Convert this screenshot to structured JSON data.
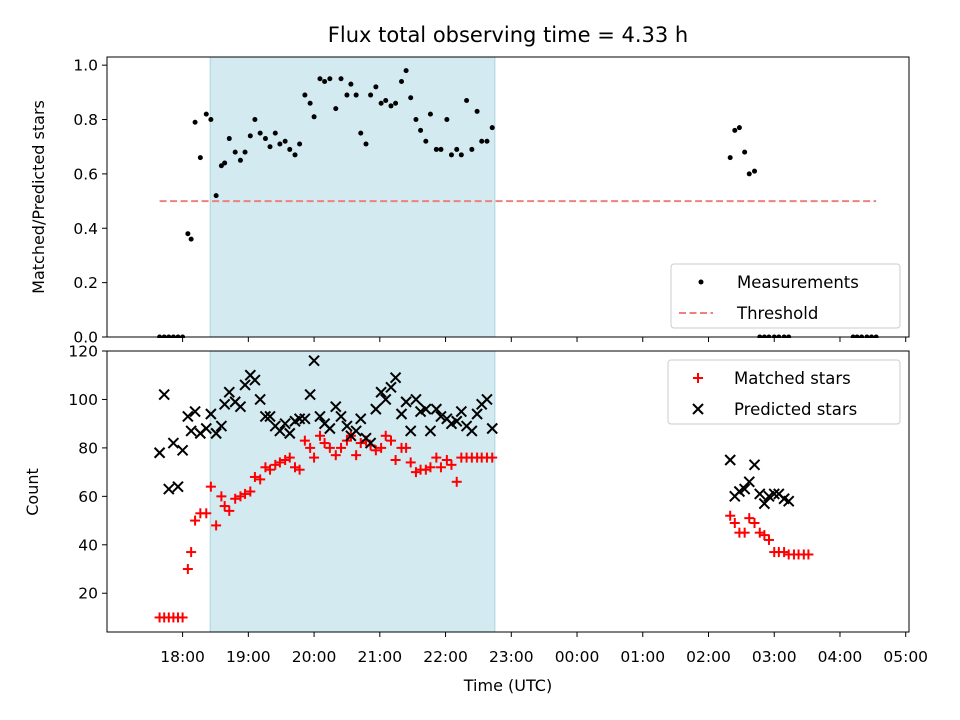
{
  "chart_data": [
    {
      "type": "scatter",
      "title": "Flux total observing time = 4.33 h",
      "ylabel": "Matched/Predicted stars",
      "xlabel": "",
      "ylim": [
        0,
        1.03
      ],
      "yticks": [
        "0.0",
        "0.2",
        "0.4",
        "0.6",
        "0.8",
        "1.0"
      ],
      "ytick_values": [
        0,
        0.2,
        0.4,
        0.6,
        0.8,
        1.0
      ],
      "x_unit": "hours since 18:00 UTC",
      "xlim": [
        -1.15,
        11.05
      ],
      "shaded_interval": [
        0.42,
        4.75
      ],
      "shade_color": "#d2eaf0",
      "legend_position": "lower-right",
      "legend": [
        "Measurements",
        "Threshold"
      ],
      "threshold": {
        "name": "Threshold",
        "value": 0.5,
        "x_range": [
          -0.35,
          10.55
        ],
        "color": "#f08080"
      },
      "series": [
        {
          "name": "Measurements",
          "color": "#000000",
          "x": [
            -0.35,
            -0.28,
            -0.21,
            -0.14,
            -0.07,
            0.0,
            0.08,
            0.13,
            0.19,
            0.27,
            0.36,
            0.43,
            0.51,
            0.59,
            0.64,
            0.71,
            0.8,
            0.88,
            0.95,
            1.03,
            1.1,
            1.18,
            1.26,
            1.33,
            1.41,
            1.48,
            1.56,
            1.63,
            1.71,
            1.78,
            1.86,
            1.94,
            2.0,
            2.09,
            2.16,
            2.24,
            2.33,
            2.41,
            2.5,
            2.56,
            2.64,
            2.71,
            2.79,
            2.86,
            2.94,
            3.02,
            3.09,
            3.17,
            3.24,
            3.33,
            3.4,
            3.47,
            3.55,
            3.62,
            3.7,
            3.77,
            3.86,
            3.93,
            4.02,
            4.09,
            4.17,
            4.24,
            4.32,
            4.4,
            4.48,
            4.55,
            4.63,
            4.71,
            8.33,
            8.4,
            8.47,
            8.55,
            8.62,
            8.7,
            8.78,
            8.85,
            8.92,
            9.0,
            9.07,
            9.15,
            9.22,
            10.2,
            10.26,
            10.33,
            10.41,
            10.48,
            10.55
          ],
          "y": [
            0.0,
            0.0,
            0.0,
            0.0,
            0.0,
            0.0,
            0.38,
            0.36,
            0.79,
            0.66,
            0.82,
            0.8,
            0.52,
            0.63,
            0.64,
            0.73,
            0.68,
            0.65,
            0.68,
            0.74,
            0.8,
            0.75,
            0.73,
            0.7,
            0.75,
            0.71,
            0.72,
            0.69,
            0.67,
            0.71,
            0.89,
            0.86,
            0.81,
            0.95,
            0.94,
            0.95,
            0.84,
            0.95,
            0.89,
            0.93,
            0.89,
            0.75,
            0.71,
            0.89,
            0.92,
            0.86,
            0.87,
            0.85,
            0.86,
            0.94,
            0.98,
            0.88,
            0.8,
            0.76,
            0.72,
            0.82,
            0.69,
            0.69,
            0.8,
            0.67,
            0.69,
            0.67,
            0.87,
            0.69,
            0.83,
            0.72,
            0.72,
            0.77,
            0.66,
            0.76,
            0.77,
            0.68,
            0.6,
            0.61,
            0.0,
            0.0,
            0.0,
            0.0,
            0.0,
            0.0,
            0.0,
            0.0,
            0.0,
            0.0,
            0.0,
            0.0,
            0.0
          ]
        }
      ]
    },
    {
      "type": "scatter",
      "title": "",
      "ylabel": "Count",
      "xlabel": "Time (UTC)",
      "ylim": [
        4,
        120
      ],
      "yticks": [
        "20",
        "40",
        "60",
        "80",
        "100",
        "120"
      ],
      "ytick_values": [
        20,
        40,
        60,
        80,
        100,
        120
      ],
      "x_unit": "hours since 18:00 UTC",
      "xlim": [
        -1.15,
        11.05
      ],
      "xticks": [
        "18:00",
        "19:00",
        "20:00",
        "21:00",
        "22:00",
        "23:00",
        "00:00",
        "01:00",
        "02:00",
        "03:00",
        "04:00",
        "05:00"
      ],
      "xtick_values": [
        0,
        1,
        2,
        3,
        4,
        5,
        6,
        7,
        8,
        9,
        10,
        11
      ],
      "shaded_interval": [
        0.42,
        4.75
      ],
      "shade_color": "#d2eaf0",
      "legend_position": "top-right",
      "legend": [
        "Matched stars",
        "Predicted stars"
      ],
      "series": [
        {
          "name": "Matched stars",
          "marker": "plus",
          "color": "#ff0000",
          "x": [
            -0.35,
            -0.28,
            -0.21,
            -0.14,
            -0.07,
            0.0,
            0.08,
            0.13,
            0.19,
            0.27,
            0.36,
            0.43,
            0.51,
            0.59,
            0.64,
            0.71,
            0.8,
            0.88,
            0.95,
            1.03,
            1.1,
            1.18,
            1.26,
            1.33,
            1.41,
            1.48,
            1.56,
            1.63,
            1.71,
            1.78,
            1.86,
            1.94,
            2.0,
            2.09,
            2.16,
            2.24,
            2.33,
            2.41,
            2.5,
            2.56,
            2.64,
            2.71,
            2.79,
            2.86,
            2.94,
            3.02,
            3.09,
            3.17,
            3.24,
            3.33,
            3.4,
            3.47,
            3.55,
            3.62,
            3.7,
            3.77,
            3.86,
            3.93,
            4.02,
            4.09,
            4.17,
            4.24,
            4.32,
            4.4,
            4.48,
            4.55,
            4.63,
            4.71,
            8.33,
            8.4,
            8.47,
            8.55,
            8.62,
            8.7,
            8.78,
            8.85,
            8.92,
            9.0,
            9.07,
            9.15,
            9.22,
            9.3,
            9.37,
            9.45,
            9.52
          ],
          "y": [
            10,
            10,
            10,
            10,
            10,
            10,
            30,
            37,
            50,
            53,
            53,
            64,
            48,
            60,
            56,
            54,
            59,
            60,
            61,
            62,
            68,
            67,
            72,
            71,
            73,
            74,
            75,
            76,
            72,
            71,
            83,
            80,
            76,
            85,
            82,
            80,
            77,
            80,
            83,
            85,
            77,
            82,
            83,
            81,
            79,
            80,
            85,
            83,
            75,
            80,
            80,
            74,
            70,
            71,
            71,
            72,
            76,
            72,
            75,
            73,
            66,
            76,
            76,
            76,
            76,
            76,
            76,
            76,
            52,
            49,
            45,
            45,
            51,
            49,
            45,
            44,
            42,
            37,
            37,
            37,
            36,
            36,
            36,
            36,
            36
          ]
        },
        {
          "name": "Predicted stars",
          "marker": "x",
          "color": "#000000",
          "x": [
            -0.35,
            -0.28,
            -0.21,
            -0.14,
            -0.07,
            0.0,
            0.08,
            0.13,
            0.19,
            0.27,
            0.36,
            0.43,
            0.51,
            0.59,
            0.64,
            0.71,
            0.8,
            0.88,
            0.95,
            1.03,
            1.1,
            1.18,
            1.26,
            1.33,
            1.41,
            1.48,
            1.56,
            1.63,
            1.71,
            1.78,
            1.86,
            1.94,
            2.0,
            2.09,
            2.16,
            2.24,
            2.33,
            2.41,
            2.5,
            2.56,
            2.64,
            2.71,
            2.79,
            2.86,
            2.94,
            3.02,
            3.09,
            3.17,
            3.24,
            3.33,
            3.4,
            3.47,
            3.55,
            3.62,
            3.7,
            3.77,
            3.86,
            3.93,
            4.02,
            4.09,
            4.17,
            4.24,
            4.32,
            4.4,
            4.48,
            4.55,
            4.63,
            4.71,
            8.33,
            8.4,
            8.47,
            8.55,
            8.62,
            8.7,
            8.78,
            8.85,
            8.92,
            9.0,
            9.07,
            9.15,
            9.22
          ],
          "y": [
            78,
            102,
            63,
            82,
            64,
            79,
            93,
            87,
            95,
            86,
            88,
            94,
            86,
            89,
            98,
            103,
            99,
            97,
            106,
            110,
            108,
            100,
            93,
            93,
            89,
            87,
            90,
            86,
            91,
            92,
            92,
            102,
            116,
            93,
            90,
            88,
            97,
            93,
            89,
            85,
            87,
            92,
            84,
            82,
            96,
            103,
            100,
            105,
            109,
            94,
            99,
            87,
            100,
            95,
            96,
            87,
            96,
            93,
            92,
            90,
            91,
            95,
            89,
            87,
            94,
            98,
            100,
            88,
            75,
            60,
            62,
            63,
            66,
            73,
            61,
            57,
            60,
            61,
            61,
            59,
            58
          ]
        }
      ]
    }
  ]
}
